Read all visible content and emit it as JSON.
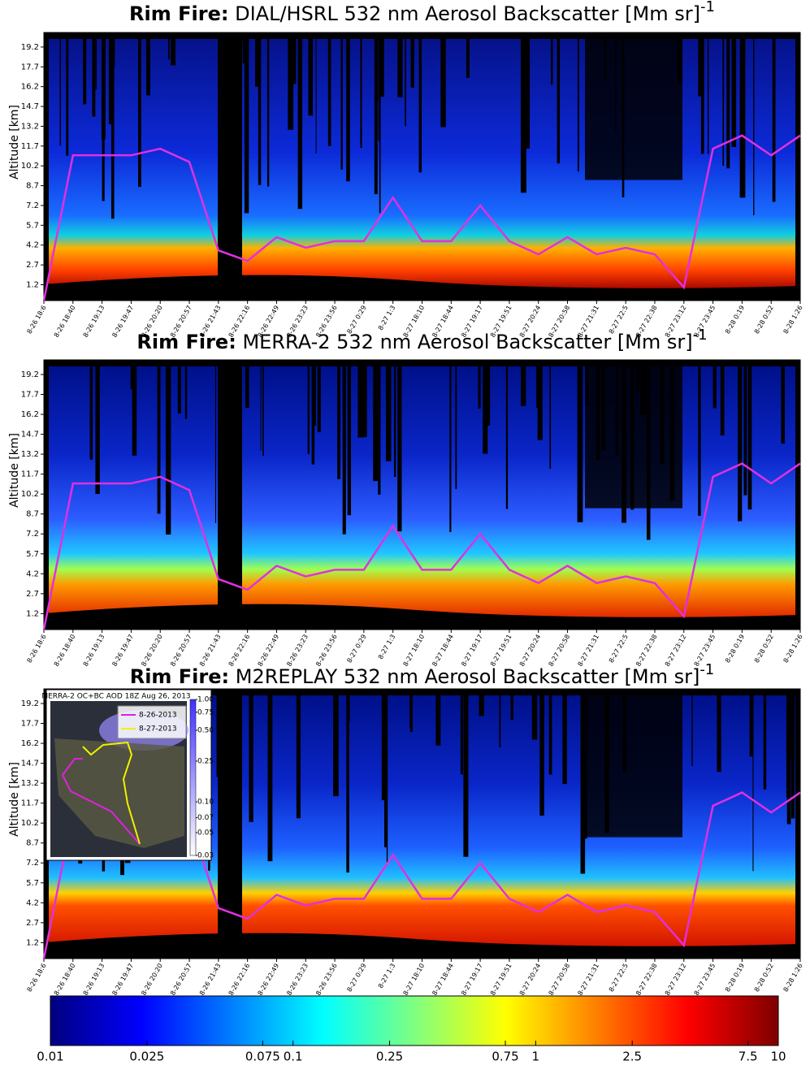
{
  "chart_data": [
    {
      "type": "curtain",
      "title_prefix": "Rim Fire:",
      "title": "DIAL/HSRL 532 nm Aerosol Backscatter [Mm sr]",
      "title_exponent": "-1",
      "y_label": "Altitude [km]",
      "ylim": [
        0,
        20.3
      ],
      "yticks": [
        1.2,
        2.7,
        4.2,
        5.7,
        7.2,
        8.7,
        10.2,
        11.7,
        13.2,
        14.7,
        16.2,
        17.7,
        19.2
      ],
      "categories": [
        "8-26 18:6",
        "8-26 18:40",
        "8-26 19:13",
        "8-26 19:47",
        "8-26 20:20",
        "8-26 20:57",
        "8-26 21:43",
        "8-26 22:16",
        "8-26 22:49",
        "8-26 23:23",
        "8-26 23:56",
        "8-27 0:29",
        "8-27 1:3",
        "8-27 18:10",
        "8-27 18:44",
        "8-27 19:17",
        "8-27 19:51",
        "8-27 20:24",
        "8-27 20:58",
        "8-27 21:31",
        "8-27 22:5",
        "8-27 22:38",
        "8-27 23:12",
        "8-27 23:45",
        "8-28 0:19",
        "8-28 0:52",
        "8-28 1:26"
      ],
      "series": [
        {
          "color": "#e030e0",
          "values": [
            0,
            11,
            11,
            11,
            11.5,
            10.5,
            3.8,
            3,
            4.8,
            4,
            4.5,
            4.5,
            7.8,
            4.5,
            4.5,
            7.2,
            4.5,
            3.5,
            4.8,
            3.5,
            4,
            3.5,
            1,
            11.5,
            12.5,
            11,
            12.5
          ]
        }
      ]
    },
    {
      "type": "curtain",
      "title_prefix": "Rim Fire:",
      "title": "MERRA-2 532 nm Aerosol Backscatter [Mm sr]",
      "title_exponent": "-1",
      "y_label": "Altitude [km]",
      "ylim": [
        0,
        20.3
      ],
      "yticks": [
        1.2,
        2.7,
        4.2,
        5.7,
        7.2,
        8.7,
        10.2,
        11.7,
        13.2,
        14.7,
        16.2,
        17.7,
        19.2
      ],
      "categories": [
        "8-26 18:6",
        "8-26 18:40",
        "8-26 19:13",
        "8-26 19:47",
        "8-26 20:20",
        "8-26 20:57",
        "8-26 21:43",
        "8-26 22:16",
        "8-26 22:49",
        "8-26 23:23",
        "8-26 23:56",
        "8-27 0:29",
        "8-27 1:3",
        "8-27 18:10",
        "8-27 18:44",
        "8-27 19:17",
        "8-27 19:51",
        "8-27 20:24",
        "8-27 20:58",
        "8-27 21:31",
        "8-27 22:5",
        "8-27 22:38",
        "8-27 23:12",
        "8-27 23:45",
        "8-28 0:19",
        "8-28 0:52",
        "8-28 1:26"
      ],
      "series": [
        {
          "color": "#e030e0",
          "values": [
            0,
            11,
            11,
            11,
            11.5,
            10.5,
            3.8,
            3,
            4.8,
            4,
            4.5,
            4.5,
            7.8,
            4.5,
            4.5,
            7.2,
            4.5,
            3.5,
            4.8,
            3.5,
            4,
            3.5,
            1,
            11.5,
            12.5,
            11,
            12.5
          ]
        }
      ]
    },
    {
      "type": "curtain",
      "title_prefix": "Rim Fire:",
      "title": "M2REPLAY 532 nm Aerosol Backscatter [Mm sr]",
      "title_exponent": "-1",
      "y_label": "Altitude [km]",
      "ylim": [
        0,
        20.3
      ],
      "yticks": [
        1.2,
        2.7,
        4.2,
        5.7,
        7.2,
        8.7,
        10.2,
        11.7,
        13.2,
        14.7,
        16.2,
        17.7,
        19.2
      ],
      "categories": [
        "8-26 18:6",
        "8-26 18:40",
        "8-26 19:13",
        "8-26 19:47",
        "8-26 20:20",
        "8-26 20:57",
        "8-26 21:43",
        "8-26 22:16",
        "8-26 22:49",
        "8-26 23:23",
        "8-26 23:56",
        "8-27 0:29",
        "8-27 1:3",
        "8-27 18:10",
        "8-27 18:44",
        "8-27 19:17",
        "8-27 19:51",
        "8-27 20:24",
        "8-27 20:58",
        "8-27 21:31",
        "8-27 22:5",
        "8-27 22:38",
        "8-27 23:12",
        "8-27 23:45",
        "8-28 0:19",
        "8-28 0:52",
        "8-28 1:26"
      ],
      "series": [
        {
          "color": "#e030e0",
          "values": [
            0,
            11,
            11,
            11,
            11.5,
            10.5,
            3.8,
            3,
            4.8,
            4,
            4.5,
            4.5,
            7.8,
            4.5,
            4.5,
            7.2,
            4.5,
            3.5,
            4.8,
            3.5,
            4,
            3.5,
            1,
            11.5,
            12.5,
            11,
            12.5
          ]
        }
      ],
      "inset": {
        "title": "MERRA-2 OC+BC AOD 18Z Aug 26, 2013",
        "legend": [
          {
            "name": "8-26-2013",
            "color": "#e020e0"
          },
          {
            "name": "8-27-2013",
            "color": "#f0f000"
          }
        ],
        "log_scale": true,
        "lim": [
          0.03,
          1
        ],
        "ticks": [
          {
            "value": 1,
            "label": "1.00"
          },
          0.75,
          {
            "value": 0.5,
            "label": "0.50"
          },
          0.25,
          {
            "value": 0.1,
            "label": "0.10"
          },
          0.07,
          0.05,
          0.03
        ]
      }
    },
    {
      "type": "colorbar",
      "log_scale": true,
      "lim": [
        0.01,
        10
      ],
      "ticks": [
        0.01,
        0.025,
        0.075,
        0.1,
        0.25,
        0.75,
        1,
        2.5,
        7.5,
        10
      ],
      "colors": [
        "#00007f",
        "#0000ff",
        "#007fff",
        "#00ffff",
        "#7fff7f",
        "#ffff00",
        "#ff7f00",
        "#ff0000",
        "#7f0000"
      ]
    }
  ]
}
